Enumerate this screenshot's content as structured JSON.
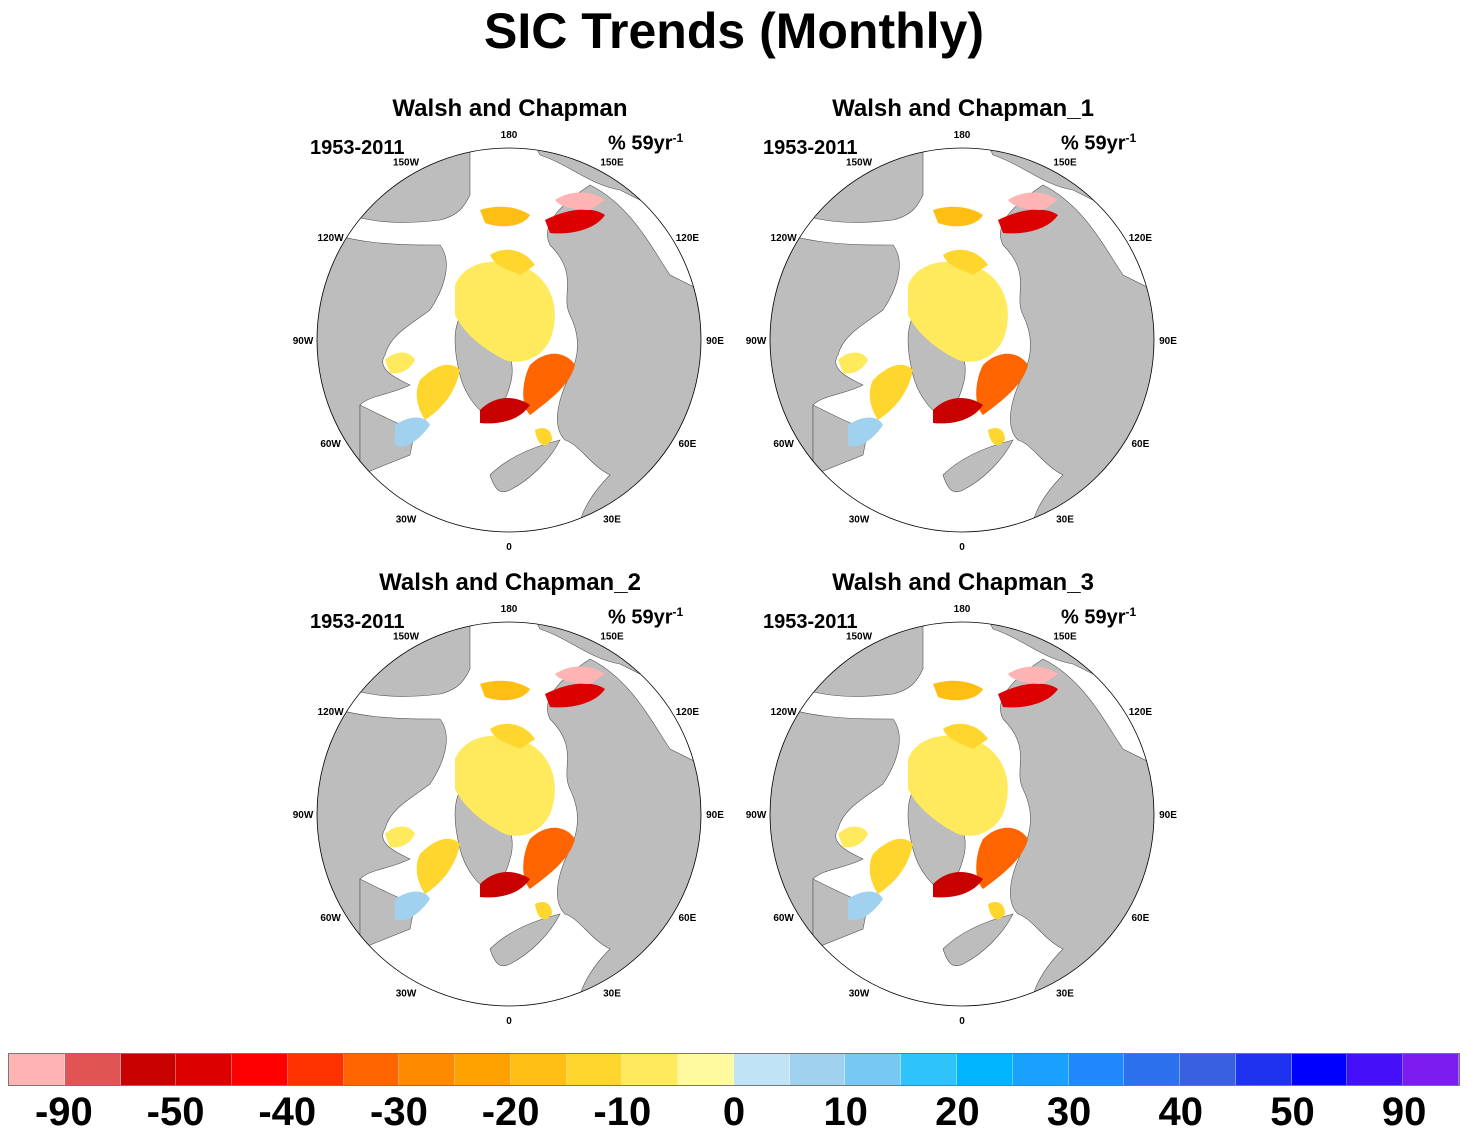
{
  "title": "SIC Trends (Monthly)",
  "panels": [
    {
      "title": "Walsh and Chapman",
      "left_string": "1953-2011",
      "right_string": "% 59yr",
      "right_exp": "-1"
    },
    {
      "title": "Walsh and Chapman_1",
      "left_string": "1953-2011",
      "right_string": "% 59yr",
      "right_exp": "-1"
    },
    {
      "title": "Walsh and Chapman_2",
      "left_string": "1953-2011",
      "right_string": "% 59yr",
      "right_exp": "-1"
    },
    {
      "title": "Walsh and Chapman_3",
      "left_string": "1953-2011",
      "right_string": "% 59yr",
      "right_exp": "-1"
    }
  ],
  "map": {
    "projection": "polar stereographic (north)",
    "longitude_labels": [
      "180",
      "150E",
      "120E",
      "90E",
      "60E",
      "30E",
      "0",
      "30W",
      "60W",
      "90W",
      "120W",
      "150W"
    ],
    "land_color": "#bdbdbd",
    "ocean_color": "#ffffff"
  },
  "colorbar": {
    "colors": [
      "#ffb4b4",
      "#e05454",
      "#c80000",
      "#dc0000",
      "#fe0000",
      "#fe3200",
      "#fe6400",
      "#fe8a00",
      "#ffa200",
      "#ffbe14",
      "#ffd62e",
      "#ffe95c",
      "#fff9a0",
      "#c0e4f6",
      "#a0d2f0",
      "#78c8f4",
      "#2ec4fa",
      "#00b4ff",
      "#1aa0ff",
      "#2088fc",
      "#2c70ee",
      "#3860e0",
      "#1e32f0",
      "#0000ff",
      "#4410fa",
      "#7c1cf0"
    ],
    "labels": [
      "-90",
      "-50",
      "-40",
      "-30",
      "-20",
      "-10",
      "0",
      "10",
      "20",
      "30",
      "40",
      "50",
      "90"
    ]
  }
}
